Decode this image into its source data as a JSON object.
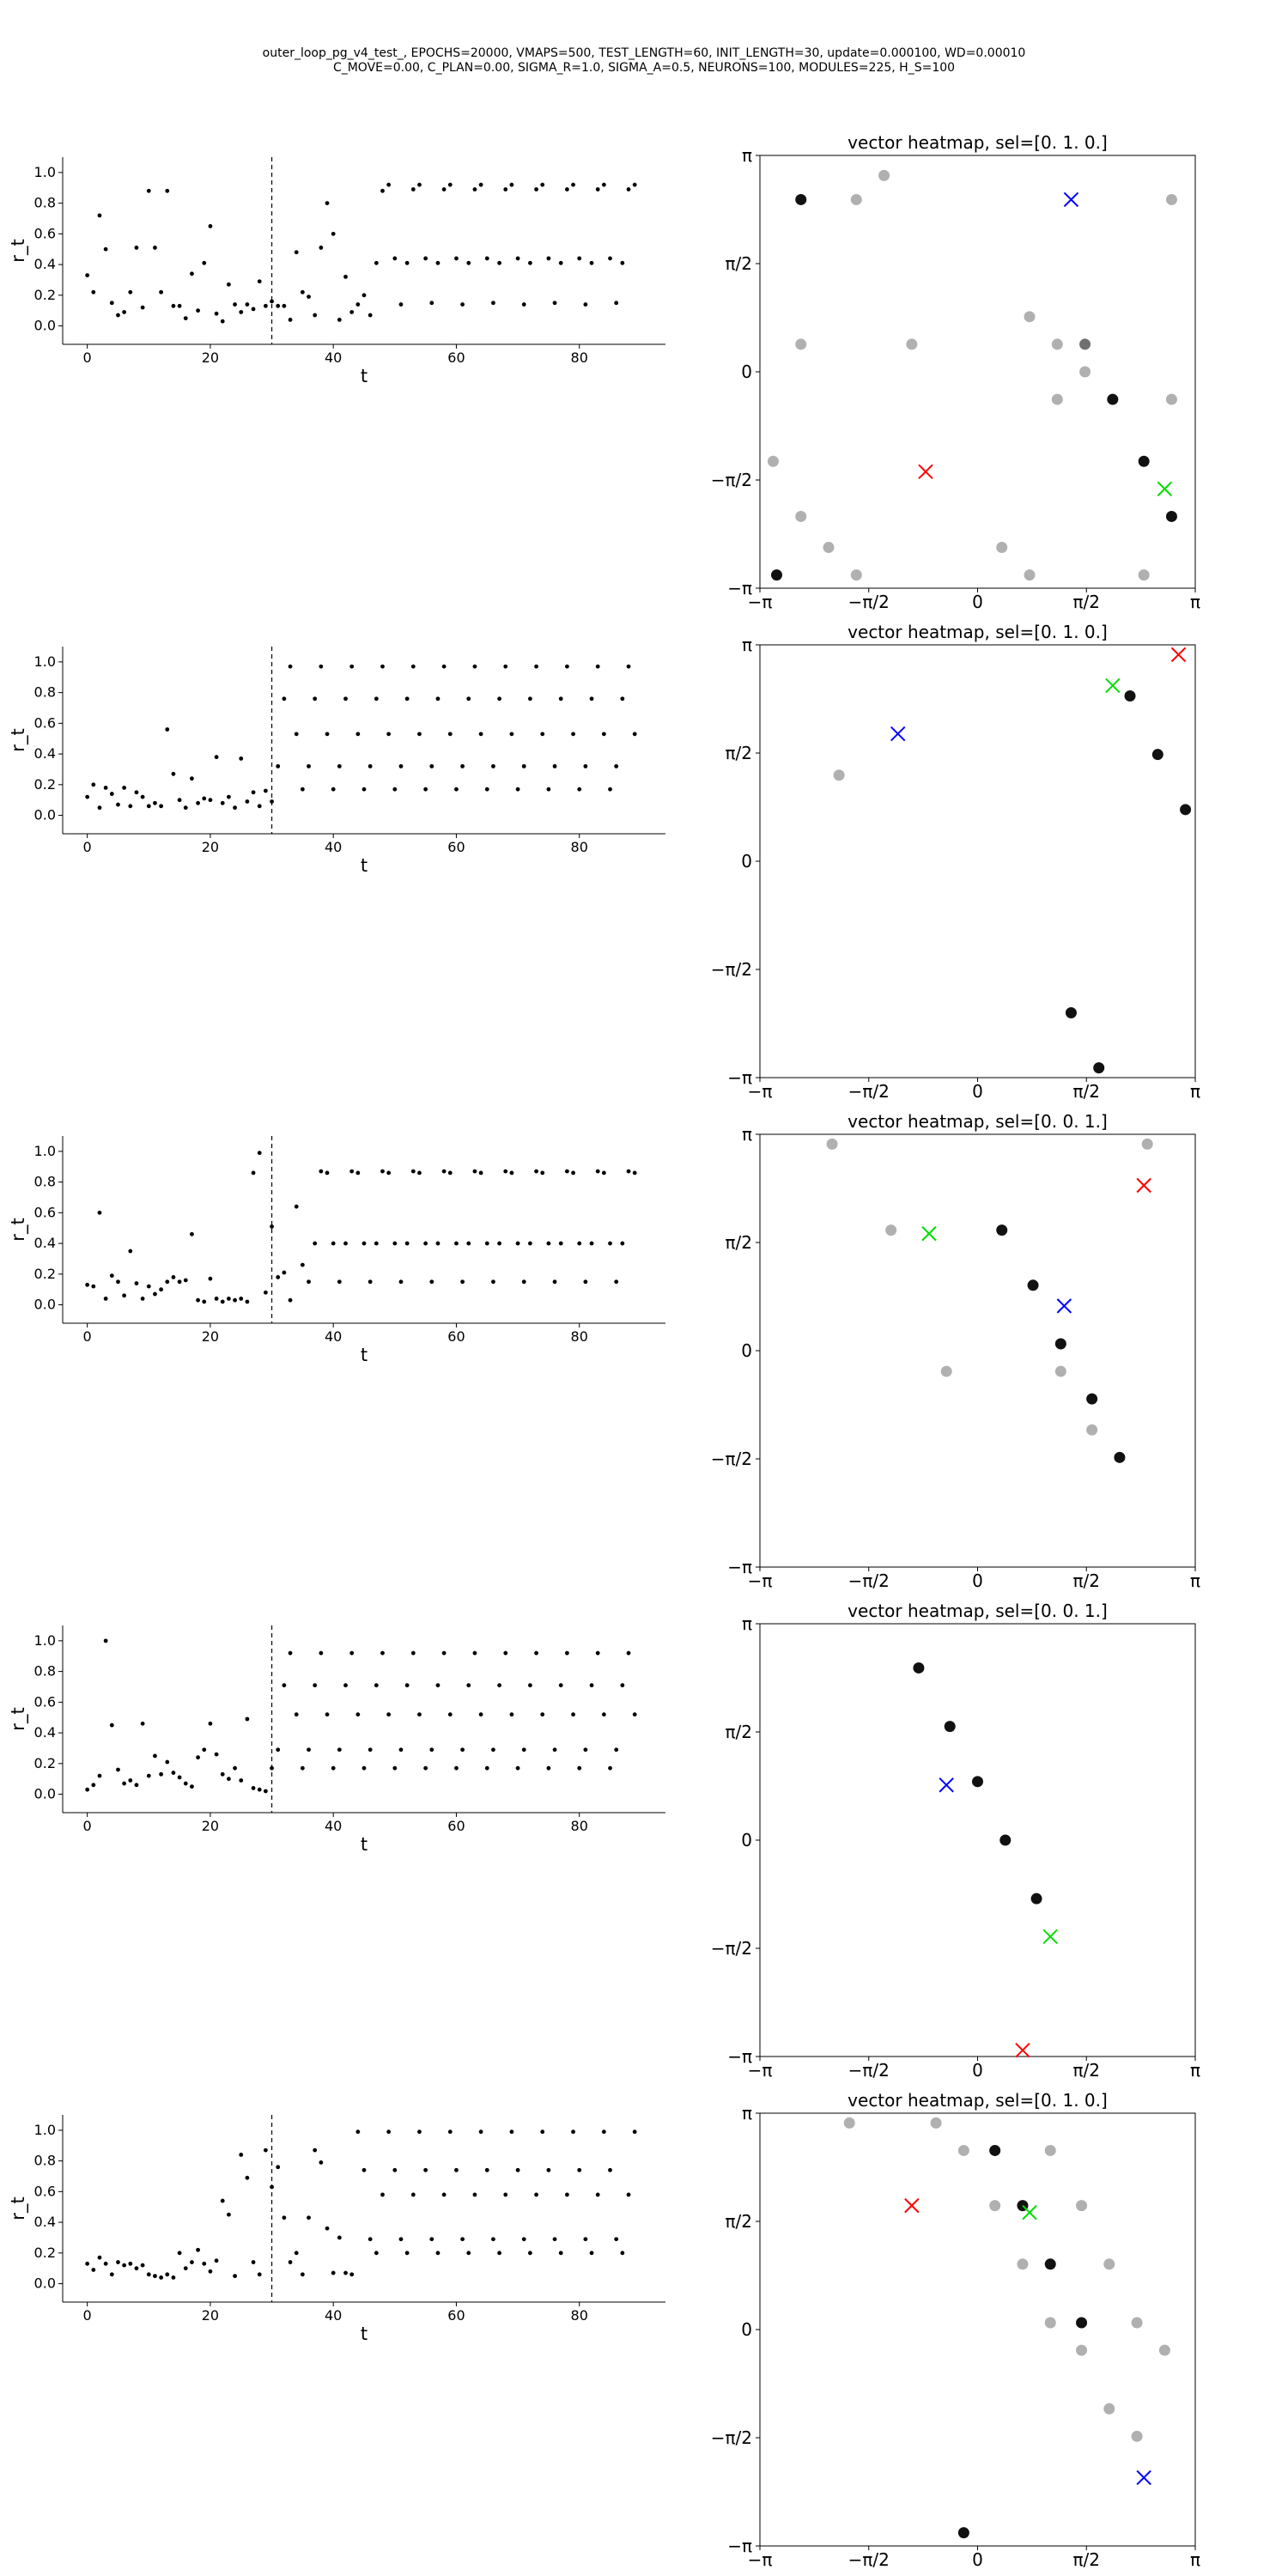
{
  "figure": {
    "suptitle_line1": "outer_loop_pg_v4_test_, EPOCHS=20000, VMAPS=500, TEST_LENGTH=60, INIT_LENGTH=30, update=0.000100, WD=0.00010",
    "suptitle_line2": "C_MOVE=0.00, C_PLAN=0.00, SIGMA_R=1.0, SIGMA_A=0.5, NEURONS=100, MODULES=225, H_S=100"
  },
  "colors": {
    "points": "#000000",
    "faint": "#b0b0b0",
    "blue_marker": "#0000ff",
    "red_marker": "#ff0000",
    "green_marker": "#00dd00"
  },
  "chart_data": [
    {
      "type": "scatter",
      "xlabel": "t",
      "ylabel": "r_t",
      "xlim": [
        -4,
        94
      ],
      "ylim": [
        -0.12,
        1.1
      ],
      "xticks": [
        "0",
        "20",
        "40",
        "60",
        "80"
      ],
      "yticks": [
        "0.0",
        "0.2",
        "0.4",
        "0.6",
        "0.8",
        "1.0"
      ],
      "vline_x": 30,
      "y": [
        0.33,
        0.22,
        0.72,
        0.5,
        0.15,
        0.07,
        0.09,
        0.22,
        0.51,
        0.12,
        0.88,
        0.51,
        0.22,
        0.88,
        0.13,
        0.13,
        0.05,
        0.34,
        0.1,
        0.41,
        0.65,
        0.08,
        0.03,
        0.27,
        0.14,
        0.09,
        0.14,
        0.11,
        0.29,
        0.13,
        0.16,
        0.13,
        0.13,
        0.04,
        0.48,
        0.22,
        0.19,
        0.07,
        0.51,
        0.8,
        0.6,
        0.04,
        0.32,
        0.09,
        0.14,
        0.2,
        0.07,
        0.41,
        0.88,
        0.92,
        0.44,
        0.14,
        0.41,
        0.89,
        0.92,
        0.44,
        0.15,
        0.41,
        0.89,
        0.92,
        0.44,
        0.14,
        0.41,
        0.89,
        0.92,
        0.44,
        0.15,
        0.41,
        0.89,
        0.92,
        0.44,
        0.14,
        0.41,
        0.89,
        0.92,
        0.44,
        0.15,
        0.41,
        0.89,
        0.92,
        0.44,
        0.14,
        0.41,
        0.89,
        0.92,
        0.44,
        0.15,
        0.41,
        0.89,
        0.92
      ]
    },
    {
      "type": "scatter",
      "title": "vector heatmap, sel=[0. 1. 0.]",
      "xlim": [
        -3.1416,
        3.1416
      ],
      "ylim": [
        -3.1416,
        3.1416
      ],
      "xticks": [
        "−π",
        "−π/2",
        "0",
        "π/2",
        "π"
      ],
      "yticks": [
        "−π",
        "−π/2",
        "0",
        "π/2",
        "π"
      ],
      "points": [
        {
          "x": -2.95,
          "y": -1.3,
          "c": "faint"
        },
        {
          "x": -2.55,
          "y": -2.1,
          "c": "faint"
        },
        {
          "x": -2.55,
          "y": 0.4,
          "c": "faint"
        },
        {
          "x": -2.15,
          "y": -2.55,
          "c": "faint"
        },
        {
          "x": -1.75,
          "y": -2.95,
          "c": "faint"
        },
        {
          "x": -1.75,
          "y": 2.5,
          "c": "faint"
        },
        {
          "x": -1.35,
          "y": 2.85,
          "c": "faint"
        },
        {
          "x": -0.95,
          "y": 0.4,
          "c": "faint"
        },
        {
          "x": 0.35,
          "y": -2.55,
          "c": "faint"
        },
        {
          "x": 0.75,
          "y": -2.95,
          "c": "faint"
        },
        {
          "x": 0.75,
          "y": 0.8,
          "c": "faint"
        },
        {
          "x": 1.15,
          "y": 0.4,
          "c": "faint"
        },
        {
          "x": 1.15,
          "y": -0.4,
          "c": "faint"
        },
        {
          "x": 1.55,
          "y": 0,
          "c": "faint"
        },
        {
          "x": 2.4,
          "y": -2.95,
          "c": "faint"
        },
        {
          "x": 2.8,
          "y": -0.4,
          "c": "faint"
        },
        {
          "x": 2.8,
          "y": 2.5,
          "c": "faint"
        },
        {
          "x": 1.55,
          "y": 0.4,
          "c": "grey"
        },
        {
          "x": -2.55,
          "y": 2.5,
          "c": "dark"
        },
        {
          "x": -2.9,
          "y": -2.95,
          "c": "dark"
        },
        {
          "x": 1.95,
          "y": -0.4,
          "c": "dark"
        },
        {
          "x": 2.4,
          "y": -1.3,
          "c": "dark"
        },
        {
          "x": 2.8,
          "y": -2.1,
          "c": "dark"
        }
      ],
      "markers": [
        {
          "x": 1.35,
          "y": 2.5,
          "c": "blue_marker"
        },
        {
          "x": -0.75,
          "y": -1.45,
          "c": "red_marker"
        },
        {
          "x": 2.7,
          "y": -1.7,
          "c": "green_marker"
        }
      ]
    },
    {
      "type": "scatter",
      "xlabel": "t",
      "ylabel": "r_t",
      "xlim": [
        -4,
        94
      ],
      "ylim": [
        -0.12,
        1.1
      ],
      "xticks": [
        "0",
        "20",
        "40",
        "60",
        "80"
      ],
      "yticks": [
        "0.0",
        "0.2",
        "0.4",
        "0.6",
        "0.8",
        "1.0"
      ],
      "vline_x": 30,
      "y": [
        0.12,
        0.2,
        0.05,
        0.18,
        0.14,
        0.07,
        0.18,
        0.06,
        0.15,
        0.12,
        0.06,
        0.08,
        0.06,
        0.56,
        0.27,
        0.1,
        0.05,
        0.24,
        0.08,
        0.11,
        0.1,
        0.38,
        0.08,
        0.12,
        0.05,
        0.37,
        0.09,
        0.15,
        0.06,
        0.16,
        0.09,
        0.32,
        0.76,
        0.97,
        0.53,
        0.17,
        0.32,
        0.76,
        0.97,
        0.53,
        0.17,
        0.32,
        0.76,
        0.97,
        0.53,
        0.17,
        0.32,
        0.76,
        0.97,
        0.53,
        0.17,
        0.32,
        0.76,
        0.97,
        0.53,
        0.17,
        0.32,
        0.76,
        0.97,
        0.53,
        0.17,
        0.32,
        0.76,
        0.97,
        0.53,
        0.17,
        0.32,
        0.76,
        0.97,
        0.53,
        0.17,
        0.32,
        0.76,
        0.97,
        0.53,
        0.17,
        0.32,
        0.76,
        0.97,
        0.53,
        0.17,
        0.32,
        0.76,
        0.97,
        0.53,
        0.17,
        0.32,
        0.76,
        0.97,
        0.53
      ]
    },
    {
      "type": "scatter",
      "title": "vector heatmap, sel=[0. 1. 0.]",
      "xlim": [
        -3.1416,
        3.1416
      ],
      "ylim": [
        -3.1416,
        3.1416
      ],
      "xticks": [
        "−π",
        "−π/2",
        "0",
        "π/2",
        "π"
      ],
      "yticks": [
        "−π",
        "−π/2",
        "0",
        "π/2",
        "π"
      ],
      "points": [
        {
          "x": -2.0,
          "y": 1.25,
          "c": "faint"
        },
        {
          "x": 2.2,
          "y": 2.4,
          "c": "dark"
        },
        {
          "x": 2.6,
          "y": 1.55,
          "c": "dark"
        },
        {
          "x": 3.0,
          "y": 0.75,
          "c": "dark"
        },
        {
          "x": 1.35,
          "y": -2.2,
          "c": "dark"
        },
        {
          "x": 1.75,
          "y": -3.0,
          "c": "dark"
        }
      ],
      "markers": [
        {
          "x": -1.15,
          "y": 1.85,
          "c": "blue_marker"
        },
        {
          "x": 2.9,
          "y": 3.0,
          "c": "red_marker"
        },
        {
          "x": 1.95,
          "y": 2.55,
          "c": "green_marker"
        }
      ]
    },
    {
      "type": "scatter",
      "xlabel": "t",
      "ylabel": "r_t",
      "xlim": [
        -4,
        94
      ],
      "ylim": [
        -0.12,
        1.1
      ],
      "xticks": [
        "0",
        "20",
        "40",
        "60",
        "80"
      ],
      "yticks": [
        "0.0",
        "0.2",
        "0.4",
        "0.6",
        "0.8",
        "1.0"
      ],
      "vline_x": 30,
      "y": [
        0.13,
        0.12,
        0.6,
        0.04,
        0.19,
        0.15,
        0.06,
        0.35,
        0.14,
        0.04,
        0.12,
        0.07,
        0.1,
        0.15,
        0.18,
        0.15,
        0.16,
        0.46,
        0.03,
        0.02,
        0.17,
        0.04,
        0.02,
        0.04,
        0.03,
        0.04,
        0.02,
        0.86,
        0.99,
        0.08,
        0.51,
        0.18,
        0.21,
        0.03,
        0.64,
        0.26,
        0.15,
        0.4,
        0.87,
        0.86,
        0.4,
        0.15,
        0.4,
        0.87,
        0.86,
        0.4,
        0.15,
        0.4,
        0.87,
        0.86,
        0.4,
        0.15,
        0.4,
        0.87,
        0.86,
        0.4,
        0.15,
        0.4,
        0.87,
        0.86,
        0.4,
        0.15,
        0.4,
        0.87,
        0.86,
        0.4,
        0.15,
        0.4,
        0.87,
        0.86,
        0.4,
        0.15,
        0.4,
        0.87,
        0.86,
        0.4,
        0.15,
        0.4,
        0.87,
        0.86,
        0.4,
        0.15,
        0.4,
        0.87,
        0.86,
        0.4,
        0.15,
        0.4,
        0.87,
        0.86
      ]
    },
    {
      "type": "scatter",
      "title": "vector heatmap, sel=[0. 0. 1.]",
      "xlim": [
        -3.1416,
        3.1416
      ],
      "ylim": [
        -3.1416,
        3.1416
      ],
      "xticks": [
        "−π",
        "−π/2",
        "0",
        "π/2",
        "π"
      ],
      "yticks": [
        "−π",
        "−π/2",
        "0",
        "π/2",
        "π"
      ],
      "points": [
        {
          "x": -2.1,
          "y": 3.0,
          "c": "faint"
        },
        {
          "x": 2.45,
          "y": 3.0,
          "c": "faint"
        },
        {
          "x": -1.25,
          "y": 1.75,
          "c": "faint"
        },
        {
          "x": -0.45,
          "y": -0.3,
          "c": "faint"
        },
        {
          "x": 1.2,
          "y": -0.3,
          "c": "faint"
        },
        {
          "x": 1.65,
          "y": -1.15,
          "c": "faint"
        },
        {
          "x": 0.35,
          "y": 1.75,
          "c": "dark"
        },
        {
          "x": 0.8,
          "y": 0.95,
          "c": "dark"
        },
        {
          "x": 1.2,
          "y": 0.1,
          "c": "dark"
        },
        {
          "x": 1.65,
          "y": -0.7,
          "c": "dark"
        },
        {
          "x": 2.05,
          "y": -1.55,
          "c": "dark"
        }
      ],
      "markers": [
        {
          "x": 1.25,
          "y": 0.65,
          "c": "blue_marker"
        },
        {
          "x": 2.4,
          "y": 2.4,
          "c": "red_marker"
        },
        {
          "x": -0.7,
          "y": 1.7,
          "c": "green_marker"
        }
      ]
    },
    {
      "type": "scatter",
      "xlabel": "t",
      "ylabel": "r_t",
      "xlim": [
        -4,
        94
      ],
      "ylim": [
        -0.12,
        1.1
      ],
      "xticks": [
        "0",
        "20",
        "40",
        "60",
        "80"
      ],
      "yticks": [
        "0.0",
        "0.2",
        "0.4",
        "0.6",
        "0.8",
        "1.0"
      ],
      "vline_x": 30,
      "y": [
        0.03,
        0.06,
        0.12,
        1.0,
        0.45,
        0.16,
        0.07,
        0.09,
        0.06,
        0.46,
        0.12,
        0.25,
        0.13,
        0.21,
        0.14,
        0.11,
        0.07,
        0.05,
        0.24,
        0.29,
        0.46,
        0.26,
        0.13,
        0.1,
        0.17,
        0.09,
        0.49,
        0.04,
        0.03,
        0.02,
        0.17,
        0.29,
        0.71,
        0.92,
        0.52,
        0.17,
        0.29,
        0.71,
        0.92,
        0.52,
        0.17,
        0.29,
        0.71,
        0.92,
        0.52,
        0.17,
        0.29,
        0.71,
        0.92,
        0.52,
        0.17,
        0.29,
        0.71,
        0.92,
        0.52,
        0.17,
        0.29,
        0.71,
        0.92,
        0.52,
        0.17,
        0.29,
        0.71,
        0.92,
        0.52,
        0.17,
        0.29,
        0.71,
        0.92,
        0.52,
        0.17,
        0.29,
        0.71,
        0.92,
        0.52,
        0.17,
        0.29,
        0.71,
        0.92,
        0.52,
        0.17,
        0.29,
        0.71,
        0.92,
        0.52,
        0.17,
        0.29,
        0.71,
        0.92,
        0.52
      ]
    },
    {
      "type": "scatter",
      "title": "vector heatmap, sel=[0. 0. 1.]",
      "xlim": [
        -3.1416,
        3.1416
      ],
      "ylim": [
        -3.1416,
        3.1416
      ],
      "xticks": [
        "−π",
        "−π/2",
        "0",
        "π/2",
        "π"
      ],
      "yticks": [
        "−π",
        "−π/2",
        "0",
        "π/2",
        "π"
      ],
      "points": [
        {
          "x": -0.85,
          "y": 2.5,
          "c": "dark"
        },
        {
          "x": -0.4,
          "y": 1.65,
          "c": "dark"
        },
        {
          "x": 0.0,
          "y": 0.85,
          "c": "dark"
        },
        {
          "x": 0.4,
          "y": 0.0,
          "c": "dark"
        },
        {
          "x": 0.85,
          "y": -0.85,
          "c": "dark"
        }
      ],
      "markers": [
        {
          "x": -0.45,
          "y": 0.8,
          "c": "blue_marker"
        },
        {
          "x": 0.65,
          "y": -3.05,
          "c": "red_marker"
        },
        {
          "x": 1.05,
          "y": -1.4,
          "c": "green_marker"
        }
      ]
    },
    {
      "type": "scatter",
      "xlabel": "t",
      "ylabel": "r_t",
      "xlim": [
        -4,
        94
      ],
      "ylim": [
        -0.12,
        1.1
      ],
      "xticks": [
        "0",
        "20",
        "40",
        "60",
        "80"
      ],
      "yticks": [
        "0.0",
        "0.2",
        "0.4",
        "0.6",
        "0.8",
        "1.0"
      ],
      "vline_x": 30,
      "y": [
        0.13,
        0.09,
        0.17,
        0.13,
        0.06,
        0.14,
        0.12,
        0.13,
        0.1,
        0.12,
        0.06,
        0.05,
        0.04,
        0.06,
        0.04,
        0.2,
        0.1,
        0.14,
        0.22,
        0.13,
        0.08,
        0.15,
        0.54,
        0.45,
        0.05,
        0.84,
        0.69,
        0.14,
        0.06,
        0.87,
        0.63,
        0.76,
        0.43,
        0.14,
        0.2,
        0.06,
        0.43,
        0.87,
        0.79,
        0.36,
        0.07,
        0.3,
        0.07,
        0.06,
        0.99,
        0.74,
        0.29,
        0.2,
        0.58,
        0.99,
        0.74,
        0.29,
        0.2,
        0.58,
        0.99,
        0.74,
        0.29,
        0.2,
        0.58,
        0.99,
        0.74,
        0.29,
        0.2,
        0.58,
        0.99,
        0.74,
        0.29,
        0.2,
        0.58,
        0.99,
        0.74,
        0.29,
        0.2,
        0.58,
        0.99,
        0.74,
        0.29,
        0.2,
        0.58,
        0.99,
        0.74,
        0.29,
        0.2,
        0.58,
        0.99,
        0.74,
        0.29,
        0.2,
        0.58,
        0.99
      ]
    },
    {
      "type": "scatter",
      "title": "vector heatmap, sel=[0. 1. 0.]",
      "xlim": [
        -3.1416,
        3.1416
      ],
      "ylim": [
        -3.1416,
        3.1416
      ],
      "xticks": [
        "−π",
        "−π/2",
        "0",
        "π/2",
        "π"
      ],
      "yticks": [
        "−π",
        "−π/2",
        "0",
        "π/2",
        "π"
      ],
      "points": [
        {
          "x": -1.85,
          "y": 3.0,
          "c": "faint"
        },
        {
          "x": -0.6,
          "y": 3.0,
          "c": "faint"
        },
        {
          "x": -0.2,
          "y": 2.6,
          "c": "faint"
        },
        {
          "x": 1.05,
          "y": 2.6,
          "c": "faint"
        },
        {
          "x": 0.25,
          "y": 1.8,
          "c": "faint"
        },
        {
          "x": 1.5,
          "y": 1.8,
          "c": "faint"
        },
        {
          "x": 0.65,
          "y": 0.95,
          "c": "faint"
        },
        {
          "x": 1.9,
          "y": 0.95,
          "c": "faint"
        },
        {
          "x": 1.05,
          "y": 0.1,
          "c": "faint"
        },
        {
          "x": 2.3,
          "y": 0.1,
          "c": "faint"
        },
        {
          "x": 1.5,
          "y": -0.3,
          "c": "faint"
        },
        {
          "x": 2.7,
          "y": -0.3,
          "c": "faint"
        },
        {
          "x": 1.9,
          "y": -1.15,
          "c": "faint"
        },
        {
          "x": 2.3,
          "y": -1.55,
          "c": "faint"
        },
        {
          "x": 0.25,
          "y": 2.6,
          "c": "dark"
        },
        {
          "x": 0.65,
          "y": 1.8,
          "c": "dark"
        },
        {
          "x": 1.05,
          "y": 0.95,
          "c": "dark"
        },
        {
          "x": 1.5,
          "y": 0.1,
          "c": "dark"
        },
        {
          "x": -0.2,
          "y": -2.95,
          "c": "dark"
        }
      ],
      "markers": [
        {
          "x": 2.4,
          "y": -2.15,
          "c": "blue_marker"
        },
        {
          "x": -0.95,
          "y": 1.8,
          "c": "red_marker"
        },
        {
          "x": 0.75,
          "y": 1.7,
          "c": "green_marker"
        }
      ]
    }
  ]
}
